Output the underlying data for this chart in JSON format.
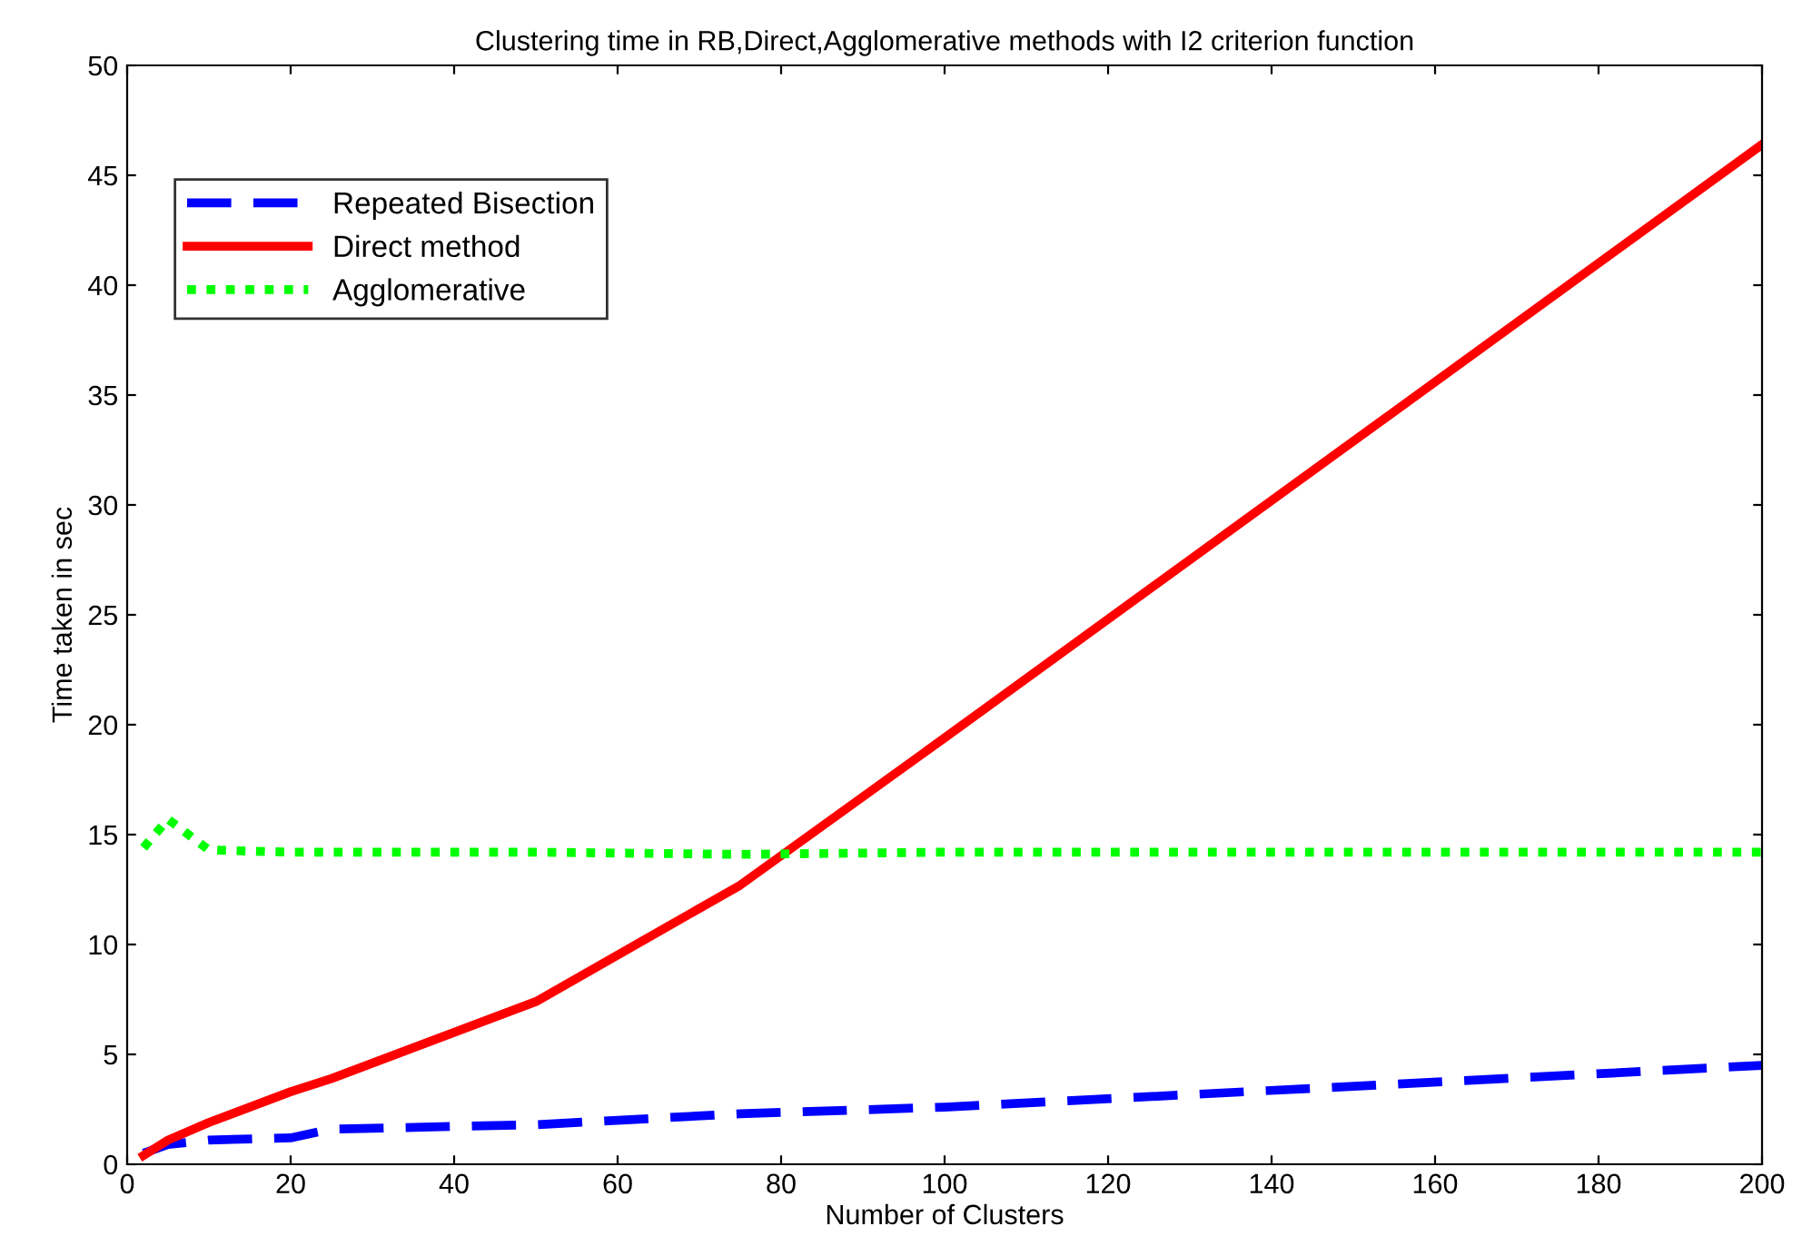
{
  "chart_data": {
    "type": "line",
    "title": "Clustering time in RB,Direct,Agglomerative methods with I2 criterion function",
    "xlabel": "Number of Clusters",
    "ylabel": "Time taken in sec",
    "x": [
      2,
      5,
      10,
      20,
      25,
      50,
      75,
      100,
      200
    ],
    "series": [
      {
        "name": "Repeated Bisection",
        "color": "#0000ff",
        "line_style": "dashed",
        "values": [
          0.5,
          0.9,
          1.1,
          1.2,
          1.6,
          1.8,
          2.3,
          2.6,
          4.5
        ]
      },
      {
        "name": "Direct method",
        "color": "#ff0000",
        "line_style": "solid",
        "values": [
          0.4,
          1.1,
          1.9,
          3.3,
          3.9,
          7.4,
          12.7,
          19.4,
          46.4
        ]
      },
      {
        "name": "Agglomerative",
        "color": "#00ff00",
        "line_style": "dotted",
        "values": [
          14.4,
          15.7,
          14.3,
          14.2,
          14.2,
          14.2,
          14.1,
          14.2,
          14.2
        ]
      }
    ],
    "xlim": [
      0,
      200
    ],
    "xticks": [
      0,
      20,
      40,
      60,
      80,
      100,
      120,
      140,
      160,
      180,
      200
    ],
    "ylim": [
      0,
      50
    ],
    "yticks": [
      0,
      5,
      10,
      15,
      20,
      25,
      30,
      35,
      40,
      45,
      50
    ],
    "grid": false,
    "legend": "top left",
    "marker": "none"
  }
}
